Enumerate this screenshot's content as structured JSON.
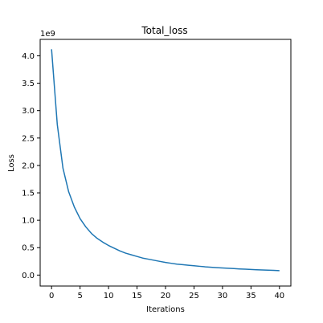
{
  "chart_data": {
    "type": "line",
    "title": "Total_loss",
    "xlabel": "Iterations",
    "ylabel": "Loss",
    "y_scale_label": "1e9",
    "xlim": [
      -2,
      42
    ],
    "ylim": [
      -0.2,
      4.3
    ],
    "x_ticks": [
      0,
      5,
      10,
      15,
      20,
      25,
      30,
      35,
      40
    ],
    "x_tick_labels": [
      "0",
      "5",
      "10",
      "15",
      "20",
      "25",
      "30",
      "35",
      "40"
    ],
    "y_ticks": [
      0.0,
      0.5,
      1.0,
      1.5,
      2.0,
      2.5,
      3.0,
      3.5,
      4.0
    ],
    "y_tick_labels": [
      "0.0",
      "0.5",
      "1.0",
      "1.5",
      "2.0",
      "2.5",
      "3.0",
      "3.5",
      "4.0"
    ],
    "grid": false,
    "series": [
      {
        "color": "#1f77b4",
        "x": [
          0,
          1,
          2,
          3,
          4,
          5,
          6,
          7,
          8,
          9,
          10,
          11,
          12,
          13,
          14,
          15,
          16,
          17,
          18,
          19,
          20,
          21,
          22,
          23,
          24,
          25,
          26,
          27,
          28,
          29,
          30,
          31,
          32,
          33,
          34,
          35,
          36,
          37,
          38,
          39,
          40
        ],
        "y": [
          4.12,
          2.75,
          1.95,
          1.52,
          1.24,
          1.03,
          0.88,
          0.76,
          0.67,
          0.6,
          0.54,
          0.49,
          0.44,
          0.4,
          0.37,
          0.34,
          0.31,
          0.29,
          0.27,
          0.25,
          0.23,
          0.215,
          0.2,
          0.19,
          0.18,
          0.17,
          0.16,
          0.15,
          0.143,
          0.136,
          0.13,
          0.124,
          0.118,
          0.112,
          0.107,
          0.102,
          0.097,
          0.093,
          0.089,
          0.085,
          0.08
        ]
      }
    ]
  }
}
